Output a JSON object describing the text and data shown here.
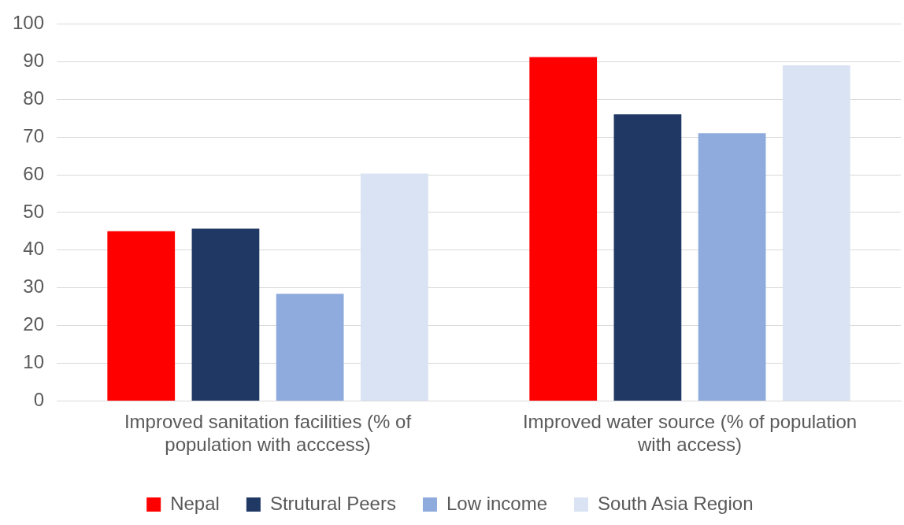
{
  "chart_data": {
    "type": "bar",
    "categories": [
      "Improved sanitation facilities (% of population with acccess)",
      "Improved water source (% of population with access)"
    ],
    "series": [
      {
        "name": "Nepal",
        "color": "#ff0000",
        "values": [
          45.0,
          91.2
        ]
      },
      {
        "name": "Strutural Peers",
        "color": "#203864",
        "values": [
          45.7,
          76.0
        ]
      },
      {
        "name": "Low income",
        "color": "#8faadc",
        "values": [
          28.4,
          71.0
        ]
      },
      {
        "name": "South Asia Region",
        "color": "#dae3f3",
        "values": [
          60.3,
          89.0
        ]
      }
    ],
    "ylim": [
      0,
      100
    ],
    "yticks": [
      0,
      10,
      20,
      30,
      40,
      50,
      60,
      70,
      80,
      90,
      100
    ],
    "grid": "y",
    "legend": "bottom"
  }
}
